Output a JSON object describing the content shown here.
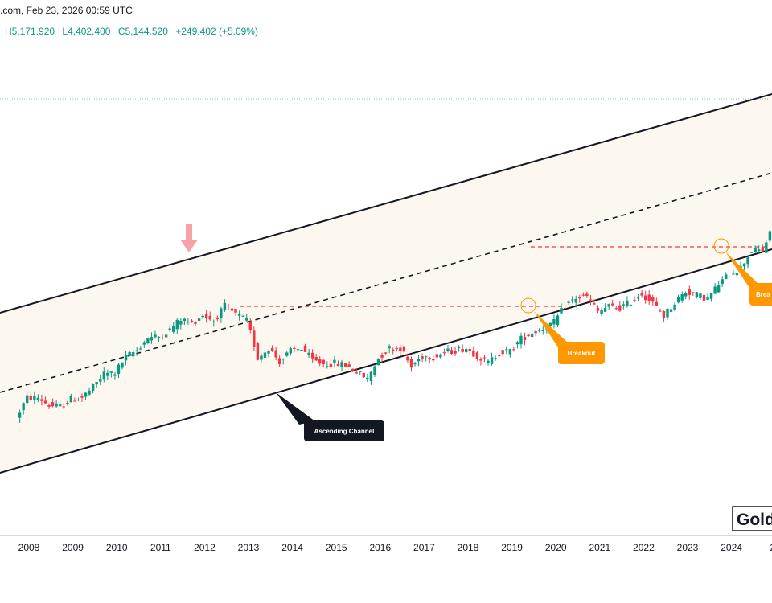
{
  "header": {
    "source_date": ".com, Feb 23, 2026 00:59 UTC",
    "ohlc": {
      "high": "H5,171.920",
      "low": "L4,402.400",
      "close": "C5,144.520",
      "change": "+249.402 (+5.09%)"
    }
  },
  "watermark": "Gold",
  "annotations": {
    "ascending_channel": "Ascending Channel",
    "breakout_1": "Breakout",
    "breakout_2": "Brea"
  },
  "colors": {
    "up": "#089981",
    "down": "#f23645",
    "channel_fill": "#fdf8ef",
    "callout_orange": "#ff9800",
    "callout_dark": "#131722",
    "resistance": "#f23645",
    "top_arrow": "#f7a1a8"
  },
  "chart_data": {
    "type": "candlestick",
    "timeframe": "approx. quarterly candles (estimated)",
    "x_axis": {
      "tick_labels": [
        "2008",
        "2009",
        "2010",
        "2011",
        "2012",
        "2013",
        "2014",
        "2015",
        "2016",
        "2017",
        "2018",
        "2019",
        "2020",
        "2021",
        "2022",
        "2023",
        "2024",
        "20"
      ]
    },
    "y_axis": {
      "visible": false,
      "note": "price scale not visible in crop; closes estimated in USD/oz"
    },
    "series": [
      {
        "quarter_closes_estimated": [
          [
            2007.75,
            800
          ],
          [
            2008.0,
            930
          ],
          [
            2008.25,
            930
          ],
          [
            2008.5,
            880
          ],
          [
            2008.75,
            870
          ],
          [
            2009.0,
            920
          ],
          [
            2009.25,
            930
          ],
          [
            2009.5,
            1000
          ],
          [
            2009.75,
            1100
          ],
          [
            2010.0,
            1110
          ],
          [
            2010.25,
            1240
          ],
          [
            2010.5,
            1300
          ],
          [
            2010.75,
            1420
          ],
          [
            2011.0,
            1430
          ],
          [
            2011.25,
            1500
          ],
          [
            2011.5,
            1620
          ],
          [
            2011.75,
            1570
          ],
          [
            2012.0,
            1670
          ],
          [
            2012.25,
            1600
          ],
          [
            2012.5,
            1770
          ],
          [
            2012.75,
            1675
          ],
          [
            2013.0,
            1600
          ],
          [
            2013.25,
            1230
          ],
          [
            2013.5,
            1320
          ],
          [
            2013.75,
            1200
          ],
          [
            2014.0,
            1290
          ],
          [
            2014.25,
            1320
          ],
          [
            2014.5,
            1210
          ],
          [
            2014.75,
            1180
          ],
          [
            2015.0,
            1185
          ],
          [
            2015.25,
            1170
          ],
          [
            2015.5,
            1115
          ],
          [
            2015.75,
            1060
          ],
          [
            2016.0,
            1230
          ],
          [
            2016.25,
            1320
          ],
          [
            2016.5,
            1320
          ],
          [
            2016.75,
            1150
          ],
          [
            2017.0,
            1250
          ],
          [
            2017.25,
            1240
          ],
          [
            2017.5,
            1280
          ],
          [
            2017.75,
            1300
          ],
          [
            2018.0,
            1320
          ],
          [
            2018.25,
            1250
          ],
          [
            2018.5,
            1190
          ],
          [
            2018.75,
            1280
          ],
          [
            2019.0,
            1290
          ],
          [
            2019.25,
            1410
          ],
          [
            2019.5,
            1470
          ],
          [
            2019.75,
            1520
          ],
          [
            2020.0,
            1580
          ],
          [
            2020.25,
            1780
          ],
          [
            2020.5,
            1880
          ],
          [
            2020.75,
            1895
          ],
          [
            2021.0,
            1710
          ],
          [
            2021.25,
            1770
          ],
          [
            2021.5,
            1750
          ],
          [
            2021.75,
            1830
          ],
          [
            2022.0,
            1940
          ],
          [
            2022.25,
            1810
          ],
          [
            2022.5,
            1660
          ],
          [
            2022.75,
            1820
          ],
          [
            2023.0,
            1970
          ],
          [
            2023.25,
            1920
          ],
          [
            2023.5,
            1870
          ],
          [
            2023.75,
            2070
          ],
          [
            2024.0,
            2230
          ],
          [
            2024.25,
            2330
          ],
          [
            2024.5,
            2630
          ],
          [
            2024.75,
            2630
          ],
          [
            2025.0,
            3120
          ],
          [
            2025.25,
            3300
          ],
          [
            2025.5,
            3860
          ]
        ]
      }
    ],
    "overlays": {
      "ascending_channel": "parallel upper / lower trend lines with dashed midline",
      "resistance_levels": [
        "~1375 (2012–2019 range top)",
        "~2075 (2020–2023 range top)"
      ],
      "breakout_markers": [
        "mid-2019",
        "late 2023"
      ],
      "top_marker": "red down-arrow at Sep 2011 high"
    },
    "grid": false,
    "legend": "none"
  }
}
